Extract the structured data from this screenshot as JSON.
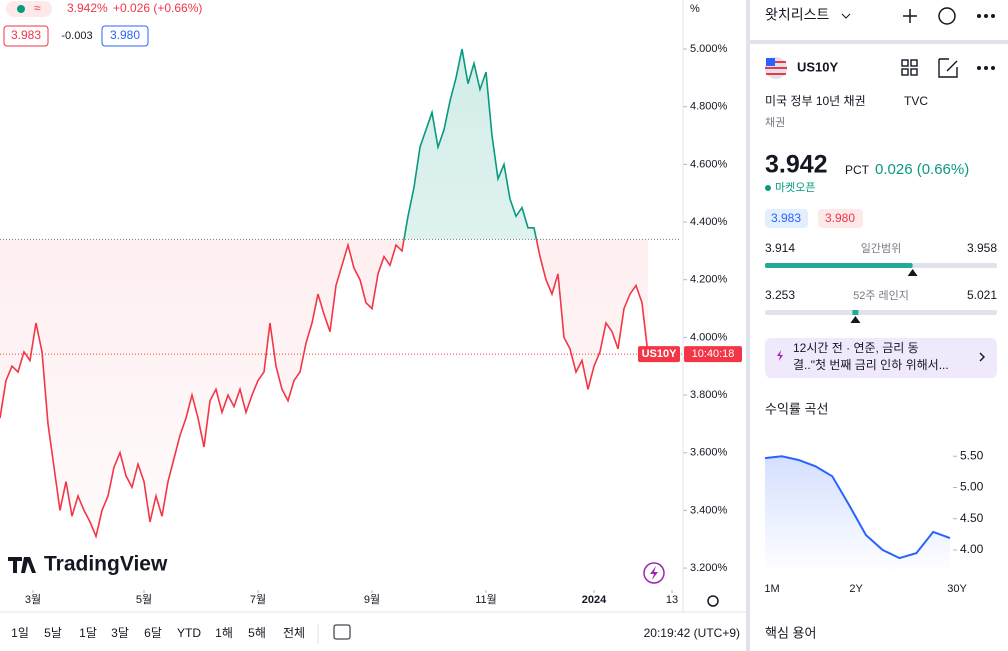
{
  "quote": {
    "approx": "≈",
    "last": "3.942%",
    "change": "+0.026 (+0.66%)",
    "bid": "3.983",
    "spread": "-0.003",
    "ask": "3.980"
  },
  "chart_data": {
    "type": "baseline",
    "symbol_label": "US10Y",
    "countdown": "10:40:18",
    "axis_unit": "%",
    "baseline": 4.34,
    "up_color": "#089981",
    "down_color": "#f23645",
    "values": [
      3.72,
      3.85,
      3.9,
      3.88,
      3.95,
      3.92,
      4.05,
      3.95,
      3.7,
      3.55,
      3.4,
      3.5,
      3.38,
      3.45,
      3.4,
      3.36,
      3.31,
      3.4,
      3.45,
      3.55,
      3.6,
      3.52,
      3.48,
      3.56,
      3.5,
      3.36,
      3.45,
      3.38,
      3.5,
      3.58,
      3.66,
      3.72,
      3.8,
      3.72,
      3.62,
      3.78,
      3.82,
      3.74,
      3.8,
      3.76,
      3.82,
      3.74,
      3.8,
      3.85,
      3.88,
      4.05,
      3.9,
      3.82,
      3.78,
      3.85,
      3.88,
      3.98,
      4.05,
      4.15,
      4.08,
      4.02,
      4.18,
      4.25,
      4.32,
      4.24,
      4.2,
      4.12,
      4.1,
      4.22,
      4.28,
      4.25,
      4.32,
      4.3,
      4.42,
      4.52,
      4.66,
      4.72,
      4.78,
      4.66,
      4.72,
      4.82,
      4.9,
      5.0,
      4.88,
      4.95,
      4.86,
      4.92,
      4.7,
      4.55,
      4.6,
      4.48,
      4.42,
      4.45,
      4.38,
      4.38,
      4.28,
      4.2,
      4.15,
      4.22,
      4.0,
      3.96,
      3.88,
      3.92,
      3.82,
      3.9,
      3.95,
      4.05,
      4.02,
      3.96,
      4.1,
      4.15,
      4.18,
      4.12,
      3.942
    ],
    "xlim": [
      0,
      112
    ],
    "xticks": [
      {
        "value": 5.5,
        "label": "3월"
      },
      {
        "value": 24,
        "label": "5월"
      },
      {
        "value": 43,
        "label": "7월"
      },
      {
        "value": 62,
        "label": "9월"
      },
      {
        "value": 81,
        "label": "11월"
      },
      {
        "value": 99,
        "label": "2024"
      },
      {
        "value": 112,
        "label": "13"
      }
    ],
    "ylim": [
      3.124,
      5.17
    ],
    "yticks": [
      {
        "value": 5.0,
        "label": "5.000%"
      },
      {
        "value": 4.8,
        "label": "4.800%"
      },
      {
        "value": 4.6,
        "label": "4.600%"
      },
      {
        "value": 4.4,
        "label": "4.400%"
      },
      {
        "value": 4.2,
        "label": "4.200%"
      },
      {
        "value": 4.0,
        "label": "4.000%"
      },
      {
        "value": 3.8,
        "label": "3.800%"
      },
      {
        "value": 3.6,
        "label": "3.600%"
      },
      {
        "value": 3.4,
        "label": "3.400%"
      },
      {
        "value": 3.2,
        "label": "3.200%"
      }
    ]
  },
  "logo": "TradingView",
  "toolbar": {
    "ranges": [
      "1일",
      "5날",
      "1달",
      "3달",
      "6달",
      "YTD",
      "1해",
      "5해",
      "전체"
    ],
    "clock": "20:19:42 (UTC+9)"
  },
  "panel": {
    "watchlist": "왓치리스트",
    "symbol": "US10Y",
    "description": "미국 정부 10년 채권",
    "exchange": "TVC",
    "category": "채권",
    "price": 3.942,
    "unit": "PCT",
    "change": "0.026 (0.66%)",
    "status": "마켓오픈",
    "bid": "3.983",
    "ask": "3.980",
    "day_low": 3.914,
    "day_label": "일간범위",
    "day_high": 3.958,
    "week_low": 3.253,
    "week_label": "52주 레인지",
    "week_high": 5.021,
    "news": [
      "12시간 전 · 연준, 금리 동",
      "결..\"첫 번째 금리 인하 위해서..."
    ],
    "curve_title": "수익률 곡선",
    "terms_title": "핵심 용어"
  },
  "curve": {
    "type": "line",
    "color": "#2962ff",
    "categories": [
      "1M",
      null,
      null,
      null,
      null,
      "2Y",
      null,
      null,
      null,
      null,
      null,
      "30Y"
    ],
    "values": [
      5.47,
      5.5,
      5.44,
      5.34,
      5.18,
      4.72,
      4.24,
      4.0,
      3.87,
      3.95,
      4.29,
      4.19
    ],
    "ylim": [
      3.76,
      5.76
    ],
    "yticks": [
      {
        "value": 5.5,
        "label": "5.50"
      },
      {
        "value": 5.0,
        "label": "5.00"
      },
      {
        "value": 4.5,
        "label": "4.50"
      },
      {
        "value": 4.0,
        "label": "4.00"
      }
    ]
  }
}
